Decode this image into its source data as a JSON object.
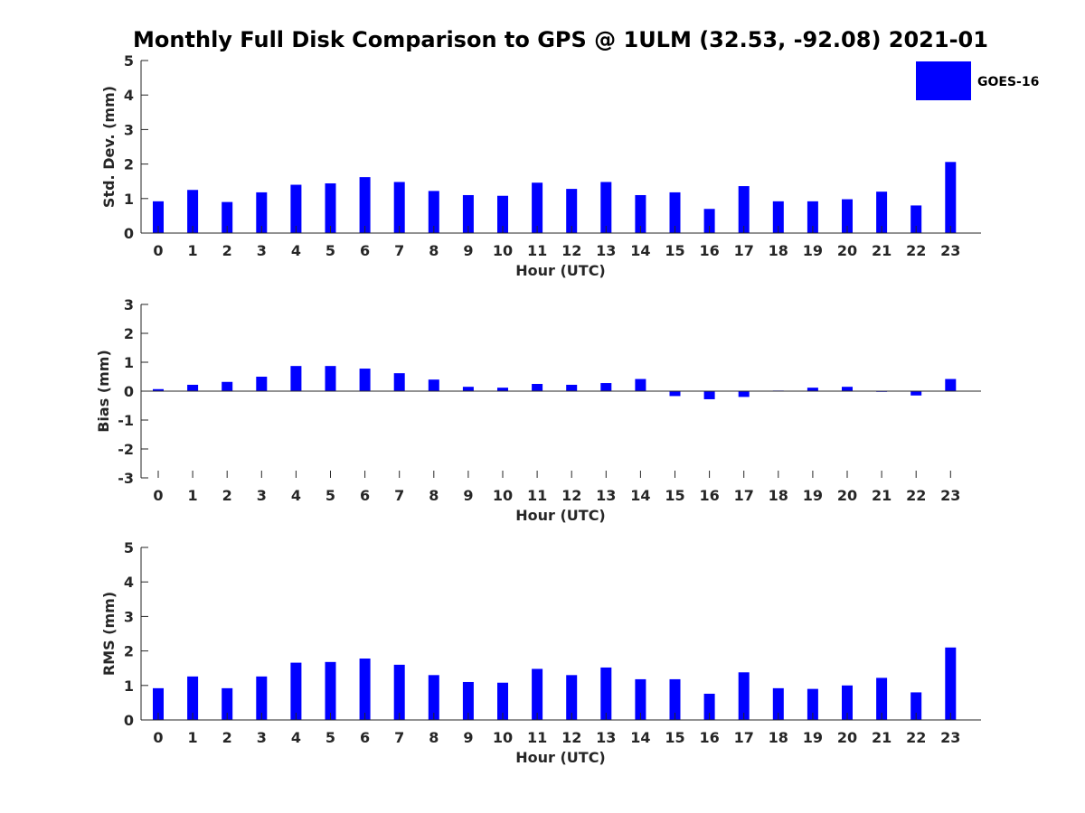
{
  "title": "Monthly Full Disk Comparison to GPS @ 1ULM (32.53, -92.08) 2021-01",
  "legend": {
    "label": "GOES-16",
    "color": "#0000ff"
  },
  "chart_data": [
    {
      "type": "bar",
      "series_name": "GOES-16",
      "color": "#0000ff",
      "categories": [
        "0",
        "1",
        "2",
        "3",
        "4",
        "5",
        "6",
        "7",
        "8",
        "9",
        "10",
        "11",
        "12",
        "13",
        "14",
        "15",
        "16",
        "17",
        "18",
        "19",
        "20",
        "21",
        "22",
        "23"
      ],
      "values": [
        0.92,
        1.25,
        0.9,
        1.18,
        1.4,
        1.44,
        1.62,
        1.48,
        1.22,
        1.1,
        1.08,
        1.46,
        1.28,
        1.48,
        1.1,
        1.18,
        0.7,
        1.36,
        0.92,
        0.92,
        0.98,
        1.2,
        0.8,
        2.06
      ],
      "xlabel": "Hour (UTC)",
      "ylabel": "Std. Dev. (mm)",
      "ylim": [
        0,
        5
      ],
      "yticks": [
        "0",
        "1",
        "2",
        "3",
        "4",
        "5"
      ]
    },
    {
      "type": "bar",
      "series_name": "GOES-16",
      "color": "#0000ff",
      "categories": [
        "0",
        "1",
        "2",
        "3",
        "4",
        "5",
        "6",
        "7",
        "8",
        "9",
        "10",
        "11",
        "12",
        "13",
        "14",
        "15",
        "16",
        "17",
        "18",
        "19",
        "20",
        "21",
        "22",
        "23"
      ],
      "values": [
        0.07,
        0.22,
        0.32,
        0.5,
        0.87,
        0.87,
        0.78,
        0.62,
        0.4,
        0.15,
        0.12,
        0.25,
        0.22,
        0.28,
        0.42,
        -0.17,
        -0.28,
        -0.2,
        0.02,
        0.12,
        0.15,
        -0.02,
        -0.15,
        0.42
      ],
      "xlabel": "Hour (UTC)",
      "ylabel": "Bias (mm)",
      "ylim": [
        -3,
        3
      ],
      "yticks": [
        "-3",
        "-2",
        "-1",
        "0",
        "1",
        "2",
        "3"
      ]
    },
    {
      "type": "bar",
      "series_name": "GOES-16",
      "color": "#0000ff",
      "categories": [
        "0",
        "1",
        "2",
        "3",
        "4",
        "5",
        "6",
        "7",
        "8",
        "9",
        "10",
        "11",
        "12",
        "13",
        "14",
        "15",
        "16",
        "17",
        "18",
        "19",
        "20",
        "21",
        "22",
        "23"
      ],
      "values": [
        0.92,
        1.26,
        0.92,
        1.26,
        1.66,
        1.68,
        1.78,
        1.6,
        1.3,
        1.1,
        1.08,
        1.48,
        1.3,
        1.52,
        1.18,
        1.18,
        0.76,
        1.38,
        0.92,
        0.9,
        1.0,
        1.22,
        0.8,
        2.1
      ],
      "xlabel": "Hour (UTC)",
      "ylabel": "RMS (mm)",
      "ylim": [
        0,
        5
      ],
      "yticks": [
        "0",
        "1",
        "2",
        "3",
        "4",
        "5"
      ]
    }
  ]
}
